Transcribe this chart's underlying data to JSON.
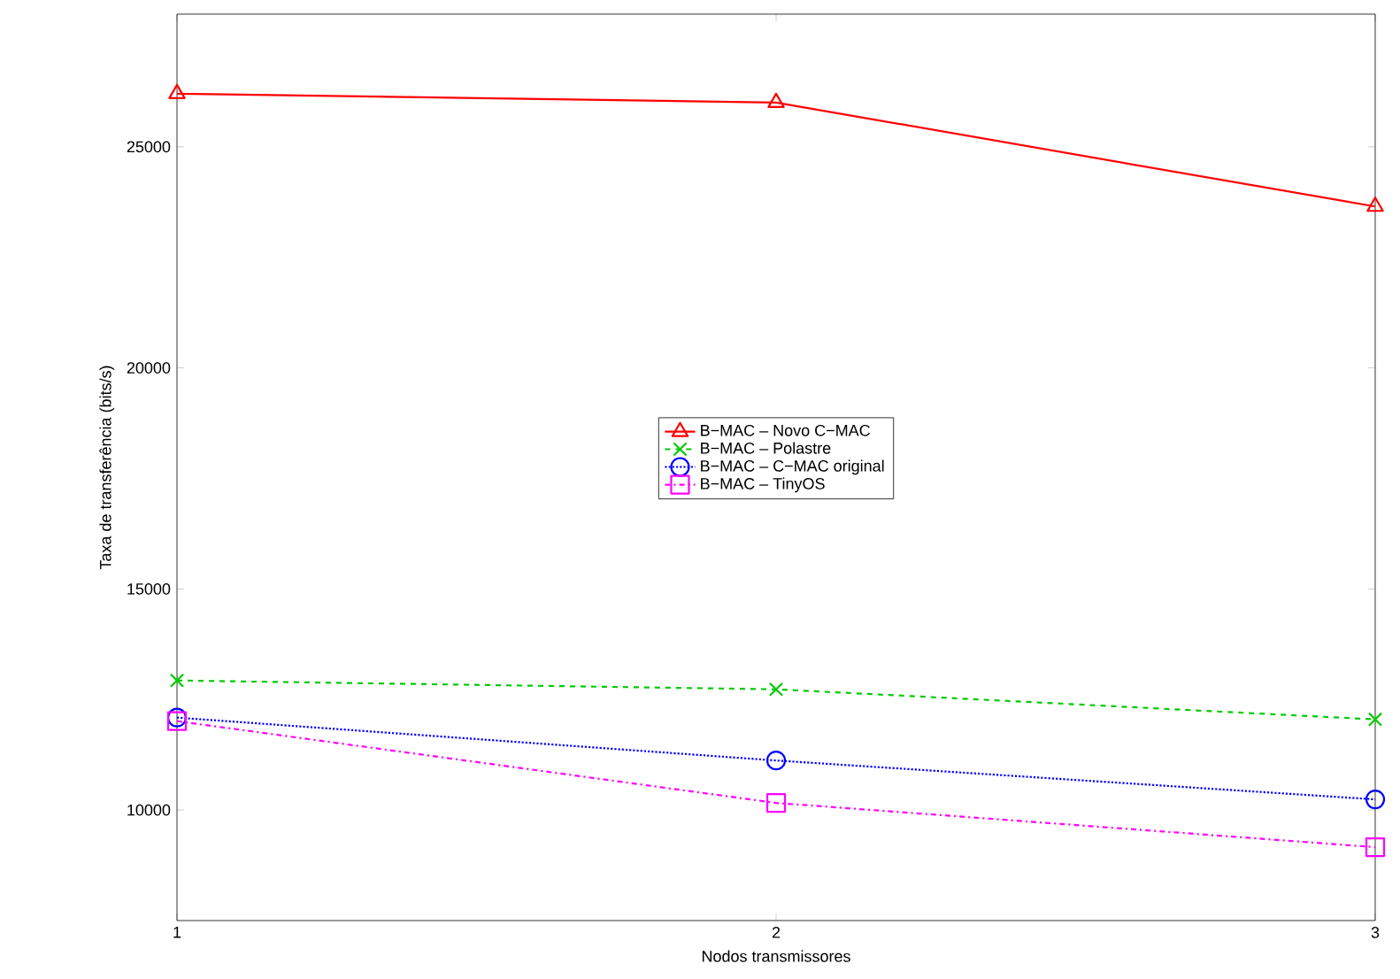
{
  "chart_data": {
    "type": "line",
    "xlabel": "Nodos transmissores",
    "ylabel": "Taxa de transferência (bits/s)",
    "x": [
      1,
      2,
      3
    ],
    "xlim": [
      1,
      3
    ],
    "xticks": [
      1,
      2,
      3
    ],
    "ylim": [
      7500,
      28000
    ],
    "yticks": [
      10000,
      15000,
      20000,
      25000
    ],
    "legend": "center",
    "grid": false,
    "series": [
      {
        "name": "B−MAC – Novo C−MAC",
        "color": "#ff0000",
        "marker": "triangle",
        "line_style": "solid",
        "values": [
          26200,
          26000,
          23650
        ]
      },
      {
        "name": "B−MAC – Polastre",
        "color": "#00cc00",
        "marker": "cross",
        "line_style": "dashed",
        "values": [
          12930,
          12730,
          12050
        ]
      },
      {
        "name": "B−MAC – C−MAC original",
        "color": "#0000ff",
        "marker": "circle",
        "line_style": "dotted",
        "values": [
          12090,
          11120,
          10240
        ]
      },
      {
        "name": "B−MAC – TinyOS",
        "color": "#ff00ff",
        "marker": "square",
        "line_style": "dashdotted",
        "values": [
          12010,
          10160,
          9160
        ]
      }
    ]
  }
}
